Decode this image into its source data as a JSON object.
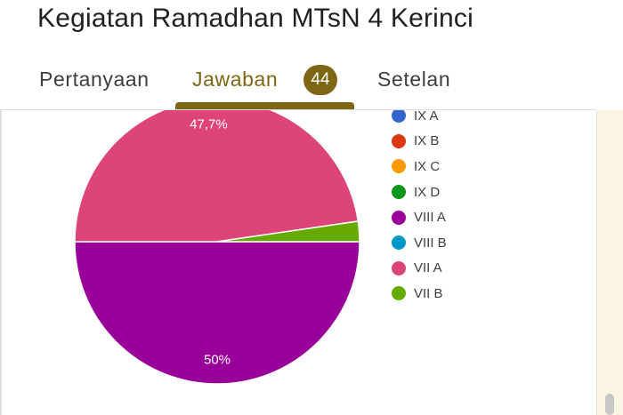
{
  "form_title": "Kegiatan Ramadhan MTsN 4 Kerinci",
  "tabs": {
    "questions": "Pertanyaan",
    "responses": "Jawaban",
    "response_count": "44",
    "settings": "Setelan"
  },
  "accent_color": "#7d6714",
  "chart_data": {
    "type": "pie",
    "labels": [
      "IX A",
      "IX B",
      "IX C",
      "IX D",
      "VIII A",
      "VIII B",
      "VII A",
      "VII B"
    ],
    "values": [
      0,
      0,
      0,
      0,
      50,
      0,
      47.7,
      2.3
    ],
    "data_labels": [
      "",
      "",
      "",
      "",
      "50%",
      "",
      "47,7%",
      ""
    ],
    "colors": [
      "#3366cc",
      "#dc3912",
      "#ff9900",
      "#109618",
      "#990099",
      "#0099c6",
      "#dd4477",
      "#66aa00"
    ],
    "legend_position": "right"
  }
}
